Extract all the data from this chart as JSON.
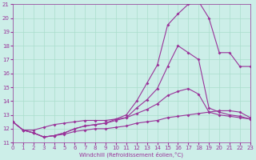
{
  "xlabel": "Windchill (Refroidissement éolien,°C)",
  "xlim": [
    0,
    23
  ],
  "ylim": [
    11,
    21
  ],
  "yticks": [
    11,
    12,
    13,
    14,
    15,
    16,
    17,
    18,
    19,
    20,
    21
  ],
  "xticks": [
    0,
    1,
    2,
    3,
    4,
    5,
    6,
    7,
    8,
    9,
    10,
    11,
    12,
    13,
    14,
    15,
    16,
    17,
    18,
    19,
    20,
    21,
    22,
    23
  ],
  "bg_color": "#cceee8",
  "line_color": "#993399",
  "grid_color": "#aaddcc",
  "line1_x": [
    0,
    1,
    2,
    3,
    4,
    5,
    6,
    7,
    8,
    9,
    10,
    11,
    12,
    13,
    14,
    15,
    16,
    17,
    18,
    19,
    20,
    21,
    22,
    23
  ],
  "line1_y": [
    12.5,
    11.9,
    11.7,
    11.4,
    11.5,
    11.6,
    11.8,
    11.9,
    12.0,
    12.0,
    12.1,
    12.2,
    12.4,
    12.5,
    12.6,
    12.8,
    12.9,
    13.0,
    13.1,
    13.2,
    13.3,
    13.3,
    13.2,
    12.8
  ],
  "line2_x": [
    0,
    1,
    2,
    3,
    4,
    5,
    6,
    7,
    8,
    9,
    10,
    11,
    12,
    13,
    14,
    15,
    16,
    17,
    18,
    19,
    20,
    21,
    22,
    23
  ],
  "line2_y": [
    12.5,
    11.9,
    11.9,
    12.1,
    12.3,
    12.4,
    12.5,
    12.6,
    12.6,
    12.6,
    12.7,
    12.8,
    13.1,
    13.4,
    13.8,
    14.4,
    14.7,
    14.9,
    14.5,
    13.2,
    13.0,
    12.9,
    12.8,
    12.7
  ],
  "line3_x": [
    0,
    1,
    2,
    3,
    4,
    5,
    6,
    7,
    8,
    9,
    10,
    11,
    12,
    13,
    14,
    15,
    16,
    17,
    18,
    19,
    20,
    21,
    22,
    23
  ],
  "line3_y": [
    12.5,
    11.9,
    11.7,
    11.4,
    11.5,
    11.7,
    12.0,
    12.2,
    12.3,
    12.4,
    12.6,
    12.8,
    13.5,
    14.1,
    14.9,
    16.5,
    18.0,
    17.5,
    17.0,
    13.5,
    13.2,
    13.0,
    12.9,
    12.7
  ],
  "line4_x": [
    0,
    1,
    2,
    3,
    4,
    5,
    6,
    7,
    8,
    9,
    10,
    11,
    12,
    13,
    14,
    15,
    16,
    17,
    18,
    19,
    20,
    21,
    22,
    23
  ],
  "line4_y": [
    12.5,
    11.9,
    11.7,
    11.4,
    11.5,
    11.7,
    12.0,
    12.2,
    12.3,
    12.4,
    12.7,
    13.0,
    14.0,
    15.3,
    16.6,
    19.5,
    20.3,
    21.0,
    21.2,
    20.0,
    17.5,
    17.5,
    16.5,
    16.5
  ]
}
